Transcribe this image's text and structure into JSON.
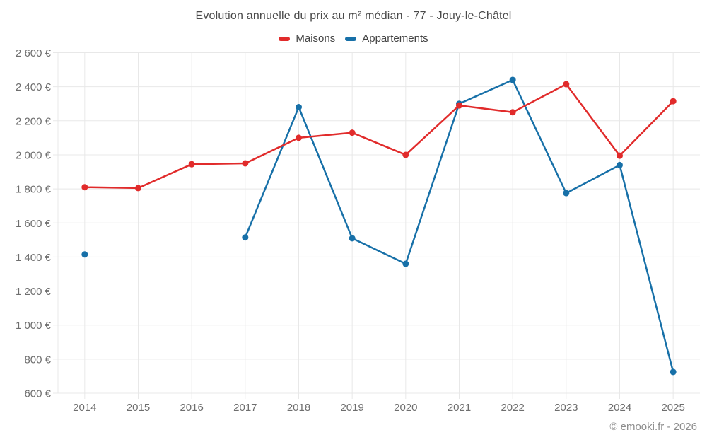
{
  "header": {
    "title": "Evolution annuelle du prix au m² médian - 77 - Jouy-le-Châtel"
  },
  "footer": {
    "credit": "© emooki.fr - 2026"
  },
  "chart_data": {
    "type": "line",
    "title": "Evolution annuelle du prix au m² médian - 77 - Jouy-le-Châtel",
    "xlabel": "",
    "ylabel": "",
    "categories": [
      "2014",
      "2015",
      "2016",
      "2017",
      "2018",
      "2019",
      "2020",
      "2021",
      "2022",
      "2023",
      "2024",
      "2025"
    ],
    "series": [
      {
        "name": "Maisons",
        "color": "#e12b2b",
        "values": [
          1810,
          1805,
          1945,
          1950,
          2100,
          2130,
          2000,
          2290,
          2250,
          2415,
          1995,
          2315
        ]
      },
      {
        "name": "Appartements",
        "color": "#1770a8",
        "values": [
          1415,
          null,
          null,
          1515,
          2280,
          1510,
          1360,
          2300,
          2440,
          1775,
          1940,
          725
        ]
      }
    ],
    "ylim": [
      600,
      2600
    ],
    "ytick_step": 200,
    "ytick_labels": [
      "600 €",
      "800 €",
      "1 000 €",
      "1 200 €",
      "1 400 €",
      "1 600 €",
      "1 800 €",
      "2 000 €",
      "2 200 €",
      "2 400 €",
      "2 600 €"
    ],
    "currency_suffix": "€",
    "grid": true,
    "legend_position": "top"
  }
}
